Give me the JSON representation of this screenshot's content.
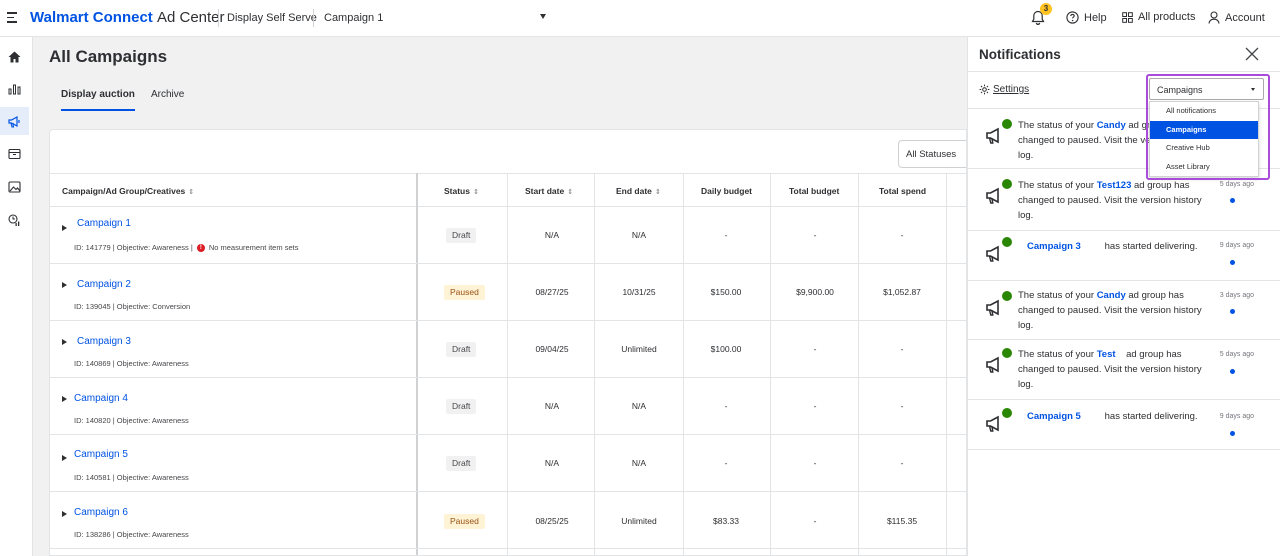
{
  "topbar": {
    "brand_walmart": "Walmart",
    "brand_connect": "Connect",
    "brand_rest": "Ad Center",
    "product": "Display Self Serve",
    "campaign_selector": "Campaign 1",
    "bell_count": "3",
    "help": "Help",
    "all_products": "All products",
    "account": "Account"
  },
  "page": {
    "title": "All Campaigns",
    "tabs": [
      "Display auction",
      "Archive"
    ],
    "status_filter": "All Statuses"
  },
  "table": {
    "columns": [
      "Campaign/Ad Group/Creatives",
      "Status",
      "Start date",
      "End date",
      "Daily budget",
      "Total budget",
      "Total spend"
    ],
    "rows": [
      {
        "name": "Campaign 1",
        "meta": "ID: 141779 | Objective: Awareness |",
        "warning": "No measurement item sets",
        "status": "Draft",
        "start": "N/A",
        "end": "N/A",
        "daily": "-",
        "total": "-",
        "spend": "-"
      },
      {
        "name": "Campaign 2",
        "meta": "ID: 139045 | Objective: Conversion",
        "status": "Paused",
        "start": "08/27/25",
        "end": "10/31/25",
        "daily": "$150.00",
        "total": "$9,900.00",
        "spend": "$1,052.87"
      },
      {
        "name": "Campaign 3",
        "meta": "ID: 140869 | Objective: Awareness",
        "status": "Draft",
        "start": "09/04/25",
        "end": "Unlimited",
        "daily": "$100.00",
        "total": "-",
        "spend": "-"
      },
      {
        "name": "Campaign 4",
        "meta": "ID: 140820 | Objective: Awareness",
        "status": "Draft",
        "start": "N/A",
        "end": "N/A",
        "daily": "-",
        "total": "-",
        "spend": "-"
      },
      {
        "name": "Campaign 5",
        "meta": "ID: 140581 | Objective: Awareness",
        "status": "Draft",
        "start": "N/A",
        "end": "N/A",
        "daily": "-",
        "total": "-",
        "spend": "-"
      },
      {
        "name": "Campaign 6",
        "meta": "ID: 138286 | Objective: Awareness",
        "status": "Paused",
        "start": "08/25/25",
        "end": "Unlimited",
        "daily": "$83.33",
        "total": "-",
        "spend": "$115.35"
      }
    ]
  },
  "notifications": {
    "title": "Notifications",
    "settings": "Settings",
    "filter_value": "Campaigns",
    "filter_options": [
      "All notifications",
      "Campaigns",
      "Creative Hub",
      "Asset Library"
    ],
    "items": [
      {
        "pre": "The status of your",
        "bold": "Candy",
        "post": "ad group has changed to paused. Visit the version history log.",
        "time": "",
        "unread": false
      },
      {
        "pre": "The status of your",
        "bold": "Test123",
        "post": "ad group has changed to paused. Visit the version history log.",
        "time": "5 days ago",
        "unread": true
      },
      {
        "pre": "",
        "bold": "Campaign 3",
        "post": "has started delivering.",
        "time": "9 days ago",
        "unread": true
      },
      {
        "pre": "The status of your",
        "bold": "Candy",
        "post": "ad group has changed to paused. Visit the version history log.",
        "time": "3 days ago",
        "unread": true
      },
      {
        "pre": "The status of your",
        "bold": "Test",
        "post": "ad group has changed to paused. Visit the version history log.",
        "time": "5 days ago",
        "unread": true
      },
      {
        "pre": "",
        "bold": "Campaign 5",
        "post": "has started delivering.",
        "time": "9 days ago",
        "unread": true
      }
    ]
  },
  "colors": {
    "accent": "#0053e2",
    "highlight_box": "#a84cd9",
    "paused_bg": "#fff3d6",
    "success": "#2a8703"
  },
  "icons": [
    "menu-icon",
    "bell-icon",
    "help-icon",
    "grid-icon",
    "account-icon",
    "home-icon",
    "chart-icon",
    "megaphone-icon",
    "box-icon",
    "image-icon",
    "report-icon",
    "gear-icon",
    "close-icon"
  ]
}
